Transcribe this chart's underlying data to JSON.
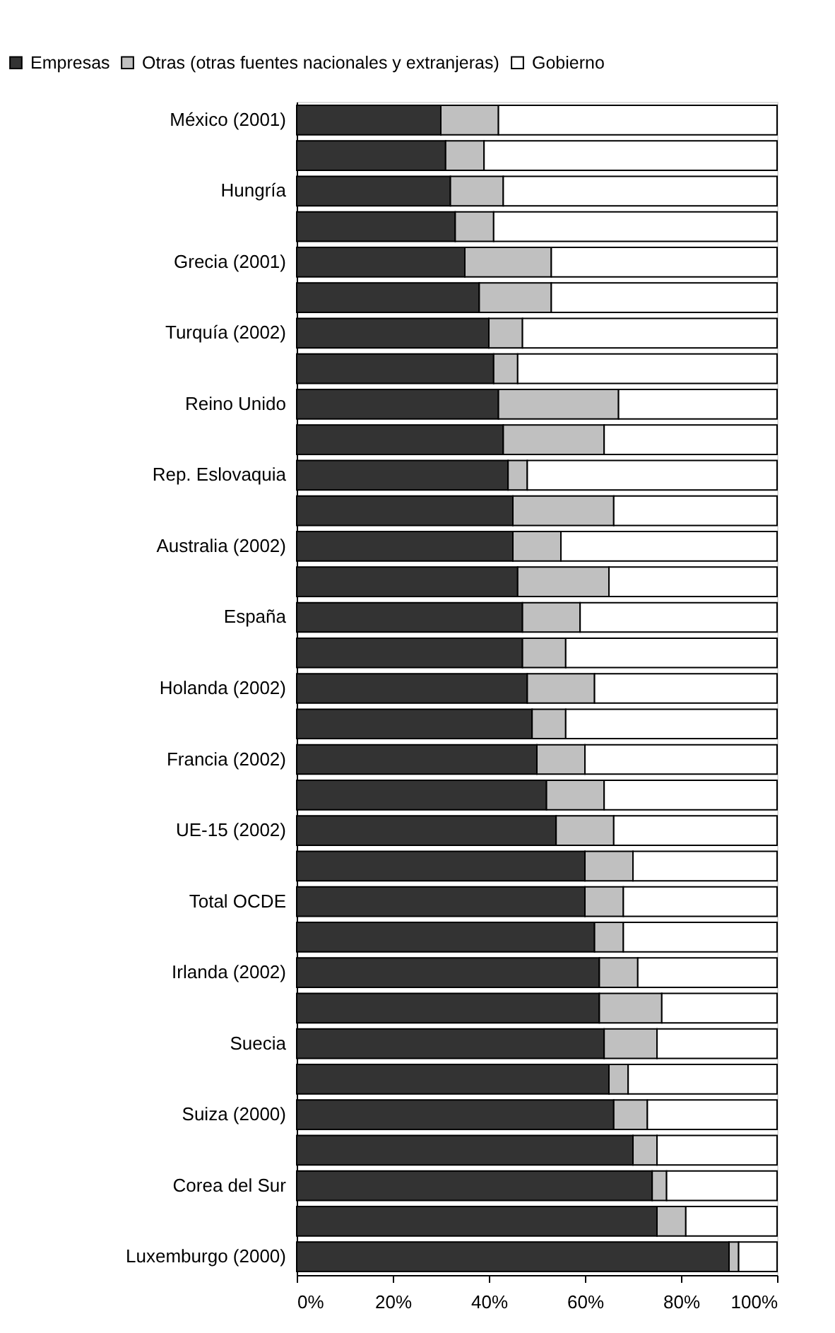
{
  "chart_data": {
    "type": "bar",
    "orientation": "horizontal",
    "stacked": true,
    "legend": "top",
    "categories": [
      "México (2001)",
      null,
      "Hungría",
      null,
      "Grecia (2001)",
      null,
      "Turquía (2002)",
      null,
      "Reino Unido",
      null,
      "Rep. Eslovaquia",
      null,
      "Australia (2002)",
      null,
      "España",
      null,
      "Holanda (2002)",
      null,
      "Francia (2002)",
      null,
      "UE-15 (2002)",
      null,
      "Total OCDE",
      null,
      "Irlanda (2002)",
      null,
      "Suecia",
      null,
      "Suiza (2000)",
      null,
      "Corea del Sur",
      null,
      "Luxemburgo (2000)"
    ],
    "series": [
      {
        "name": "Empresas",
        "color": "#333333",
        "values": [
          30,
          31,
          32,
          33,
          35,
          38,
          40,
          41,
          42,
          43,
          44,
          45,
          45,
          46,
          47,
          47,
          48,
          49,
          50,
          52,
          54,
          60,
          60,
          62,
          63,
          63,
          64,
          65,
          66,
          70,
          74,
          75,
          90
        ]
      },
      {
        "name": "Otras (otras fuentes nacionales y extranjeras)",
        "color": "#c0c0c0",
        "values": [
          12,
          8,
          11,
          8,
          18,
          15,
          7,
          5,
          25,
          21,
          4,
          21,
          10,
          19,
          12,
          9,
          14,
          7,
          10,
          12,
          12,
          10,
          8,
          6,
          8,
          13,
          11,
          4,
          7,
          5,
          3,
          6,
          2
        ]
      },
      {
        "name": "Gobierno",
        "color": "#ffffff",
        "values": [
          58,
          61,
          57,
          59,
          47,
          47,
          53,
          54,
          33,
          36,
          52,
          34,
          45,
          35,
          41,
          44,
          38,
          44,
          40,
          36,
          34,
          30,
          32,
          32,
          29,
          24,
          25,
          31,
          27,
          25,
          23,
          19,
          8
        ]
      }
    ],
    "xlim": [
      0,
      100
    ],
    "xticks": [
      {
        "value": 0,
        "label": "0%"
      },
      {
        "value": 20,
        "label": "20%"
      },
      {
        "value": 40,
        "label": "40%"
      },
      {
        "value": 60,
        "label": "60%"
      },
      {
        "value": 80,
        "label": "80%"
      },
      {
        "value": 100,
        "label": "100%"
      }
    ]
  }
}
